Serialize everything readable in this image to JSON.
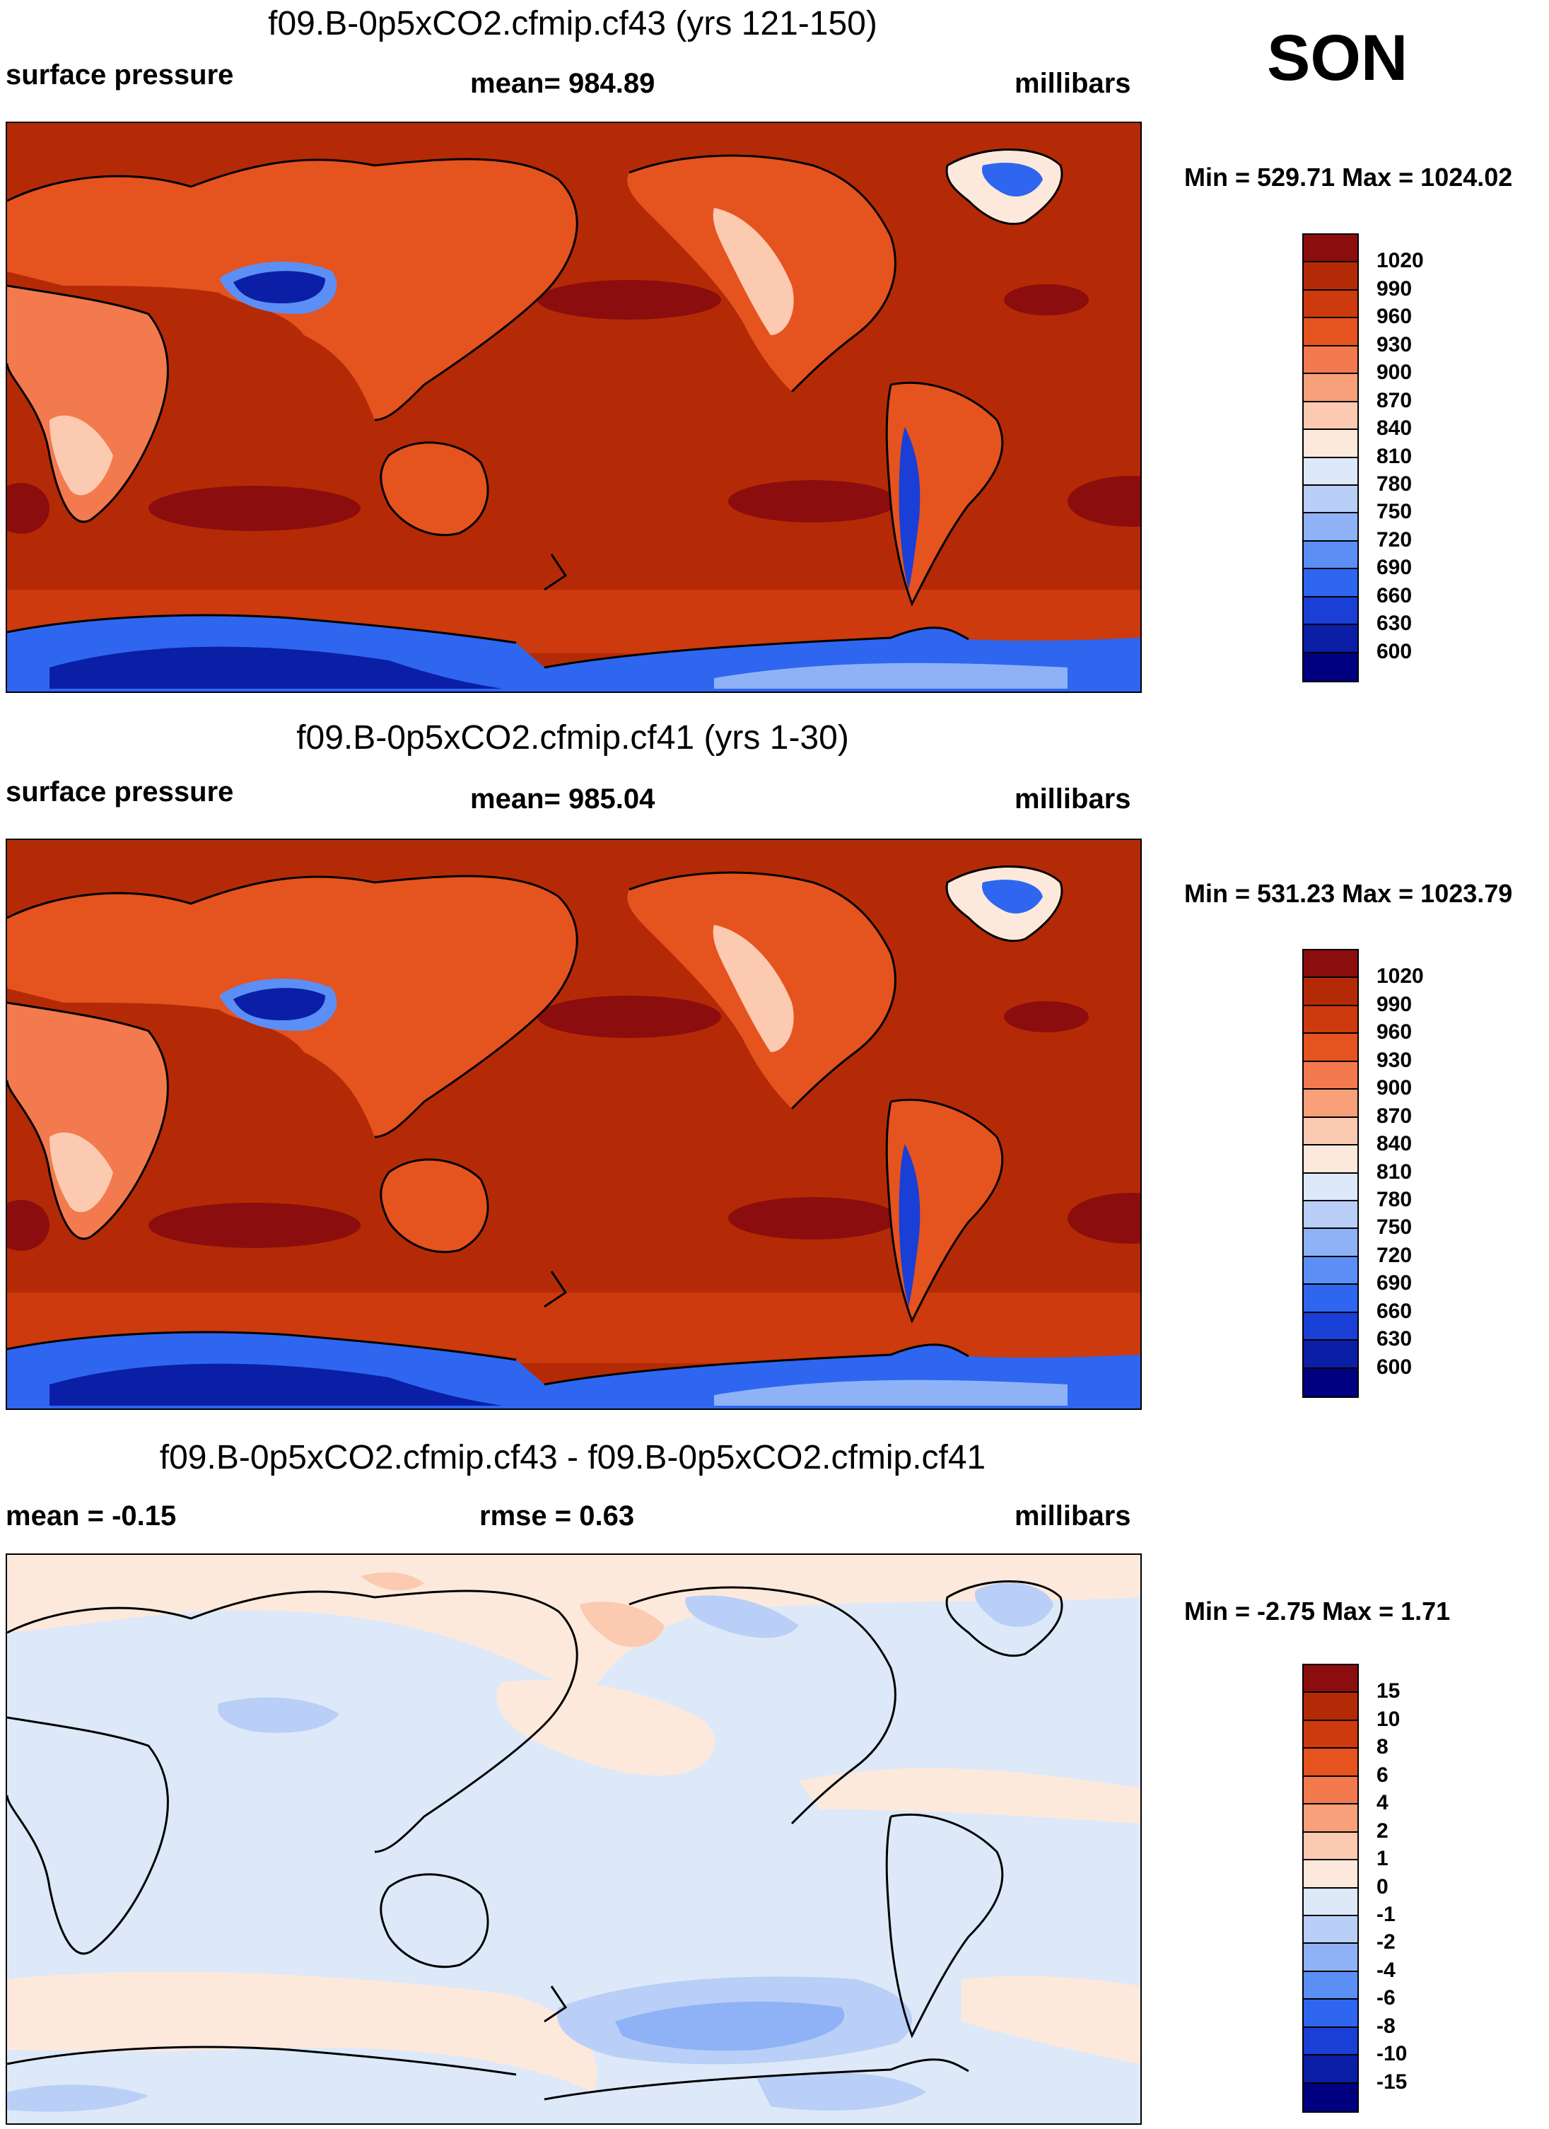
{
  "season": "SON",
  "colors": {
    "pressure": [
      "#000080",
      "#0a1fa6",
      "#1a3fd6",
      "#2e66f0",
      "#5b8ff5",
      "#8fb2f7",
      "#b9cff7",
      "#dde9f8",
      "#fde9dc",
      "#fbcab0",
      "#f7a07a",
      "#f27a4e",
      "#e5531f",
      "#cc3a0d",
      "#b52a06",
      "#8c0d0d"
    ],
    "diff": [
      "#000080",
      "#0a1fa6",
      "#1a3fd6",
      "#2e66f0",
      "#5b8ff5",
      "#8fb2f7",
      "#b9cff7",
      "#dde9f8",
      "#fde9dc",
      "#fbcab0",
      "#f7a07a",
      "#f27a4e",
      "#e5531f",
      "#cc3a0d",
      "#b52a06",
      "#8c0d0d"
    ],
    "land_outline": "#000000"
  },
  "panels": [
    {
      "title": "f09.B-0p5xCO2.cfmip.cf43 (yrs 121-150)",
      "left_label": "surface pressure",
      "center_label": "mean= 984.89",
      "units": "millibars",
      "minmax": "Min = 529.71 Max = 1024.02",
      "colorbar_labels": [
        "1020",
        "990",
        "960",
        "930",
        "900",
        "870",
        "840",
        "810",
        "780",
        "750",
        "720",
        "690",
        "660",
        "630",
        "600"
      ],
      "field_type": "pressure"
    },
    {
      "title": "f09.B-0p5xCO2.cfmip.cf41 (yrs 1-30)",
      "left_label": "surface pressure",
      "center_label": "mean= 985.04",
      "units": "millibars",
      "minmax": "Min = 531.23 Max = 1023.79",
      "colorbar_labels": [
        "1020",
        "990",
        "960",
        "930",
        "900",
        "870",
        "840",
        "810",
        "780",
        "750",
        "720",
        "690",
        "660",
        "630",
        "600"
      ],
      "field_type": "pressure"
    },
    {
      "title": "f09.B-0p5xCO2.cfmip.cf43 - f09.B-0p5xCO2.cfmip.cf41",
      "left_label": "mean =  -0.15",
      "center_label": "rmse =   0.63",
      "units": "millibars",
      "minmax": "Min =  -2.75 Max =   1.71",
      "colorbar_labels": [
        "15",
        "10",
        "8",
        "6",
        "4",
        "2",
        "1",
        "0",
        "-1",
        "-2",
        "-4",
        "-6",
        "-8",
        "-10",
        "-15"
      ],
      "field_type": "diff"
    }
  ]
}
